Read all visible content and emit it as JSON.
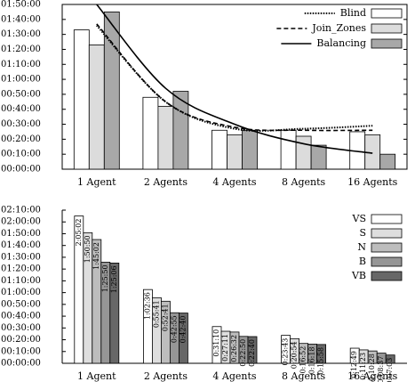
{
  "chart_data": [
    {
      "type": "bar",
      "categories": [
        "1 Agent",
        "2 Agents",
        "4 Agents",
        "8 Agents",
        "16 Agents"
      ],
      "series": [
        {
          "name": "Blind",
          "color": "#ffffff",
          "line_style": "dotted",
          "values": [
            5580,
            2880,
            1560,
            1560,
            1500
          ],
          "trend": [
            5760,
            2700,
            1620,
            1620,
            1740
          ]
        },
        {
          "name": "Join_Zones",
          "color": "#dcdcdc",
          "line_style": "dashed",
          "values": [
            4980,
            2520,
            1380,
            1320,
            1380
          ],
          "trend": [
            5820,
            2700,
            1680,
            1560,
            1560
          ]
        },
        {
          "name": "Balancing",
          "color": "#a8a8a8",
          "line_style": "solid",
          "values": [
            6300,
            3120,
            1560,
            960,
            600
          ],
          "trend": [
            6600,
            3240,
            1800,
            1020,
            640
          ]
        }
      ],
      "ylim": [
        0,
        6600
      ],
      "yticks": [
        {
          "value": 0,
          "label": "00:00:00"
        },
        {
          "value": 600,
          "label": "00:10:00"
        },
        {
          "value": 1200,
          "label": "00:20:00"
        },
        {
          "value": 1800,
          "label": "00:30:00"
        },
        {
          "value": 2400,
          "label": "00:40:00"
        },
        {
          "value": 3000,
          "label": "00:50:00"
        },
        {
          "value": 3600,
          "label": "01:00:00"
        },
        {
          "value": 4200,
          "label": "01:10:00"
        },
        {
          "value": 4800,
          "label": "01:20:00"
        },
        {
          "value": 5400,
          "label": "01:30:00"
        },
        {
          "value": 6000,
          "label": "01:40:00"
        },
        {
          "value": 6600,
          "label": "01:50:00"
        }
      ],
      "legend": "upper right"
    },
    {
      "type": "bar",
      "categories": [
        "1 Agent",
        "2 Agents",
        "4 Agents",
        "8 Agents",
        "16 Agents"
      ],
      "series": [
        {
          "name": "VS",
          "color": "#ffffff",
          "values": [
            7502,
            3756,
            1870,
            1423,
            769
          ],
          "value_labels": [
            "2:05:02",
            "1:02:36",
            "0:31:10",
            "0:23:43",
            "0:12:49"
          ]
        },
        {
          "name": "S",
          "color": "#dedede",
          "values": [
            6650,
            3341,
            1631,
            1254,
            683
          ],
          "value_labels": [
            "1:50:50",
            "0:55:41",
            "0:27:11",
            "0:20:54",
            "0:11:23"
          ]
        },
        {
          "name": "N",
          "color": "#bdbdbd",
          "values": [
            6302,
            3161,
            1592,
            1012,
            628
          ],
          "value_labels": [
            "1:45:02",
            "0:52:41",
            "0:26:32",
            "0:16:52",
            "0:10:28"
          ]
        },
        {
          "name": "B",
          "color": "#969696",
          "values": [
            5150,
            2575,
            1370,
            978,
            517
          ],
          "value_labels": [
            "1:25:50",
            "0:42:55",
            "0:22:50",
            "0:16:18",
            "0:08:37"
          ]
        },
        {
          "name": "VB",
          "color": "#676767",
          "values": [
            5106,
            2560,
            1360,
            958,
            423
          ],
          "value_labels": [
            "1:25:06",
            "0:42:40",
            "0:22:40",
            "0:15:58",
            "0:07:03"
          ]
        }
      ],
      "ylim": [
        0,
        7800
      ],
      "yticks": [
        {
          "value": 0,
          "label": "00:00:00"
        },
        {
          "value": 600,
          "label": "00:10:00"
        },
        {
          "value": 1200,
          "label": "00:20:00"
        },
        {
          "value": 1800,
          "label": "00:30:00"
        },
        {
          "value": 2400,
          "label": "00:40:00"
        },
        {
          "value": 3000,
          "label": "00:50:00"
        },
        {
          "value": 3600,
          "label": "01:00:00"
        },
        {
          "value": 4200,
          "label": "01:10:00"
        },
        {
          "value": 4800,
          "label": "01:20:00"
        },
        {
          "value": 5400,
          "label": "01:30:00"
        },
        {
          "value": 6000,
          "label": "01:40:00"
        },
        {
          "value": 6600,
          "label": "01:50:00"
        },
        {
          "value": 7200,
          "label": "02:00:00"
        },
        {
          "value": 7800,
          "label": "02:10:00"
        }
      ],
      "legend": "upper right"
    }
  ]
}
